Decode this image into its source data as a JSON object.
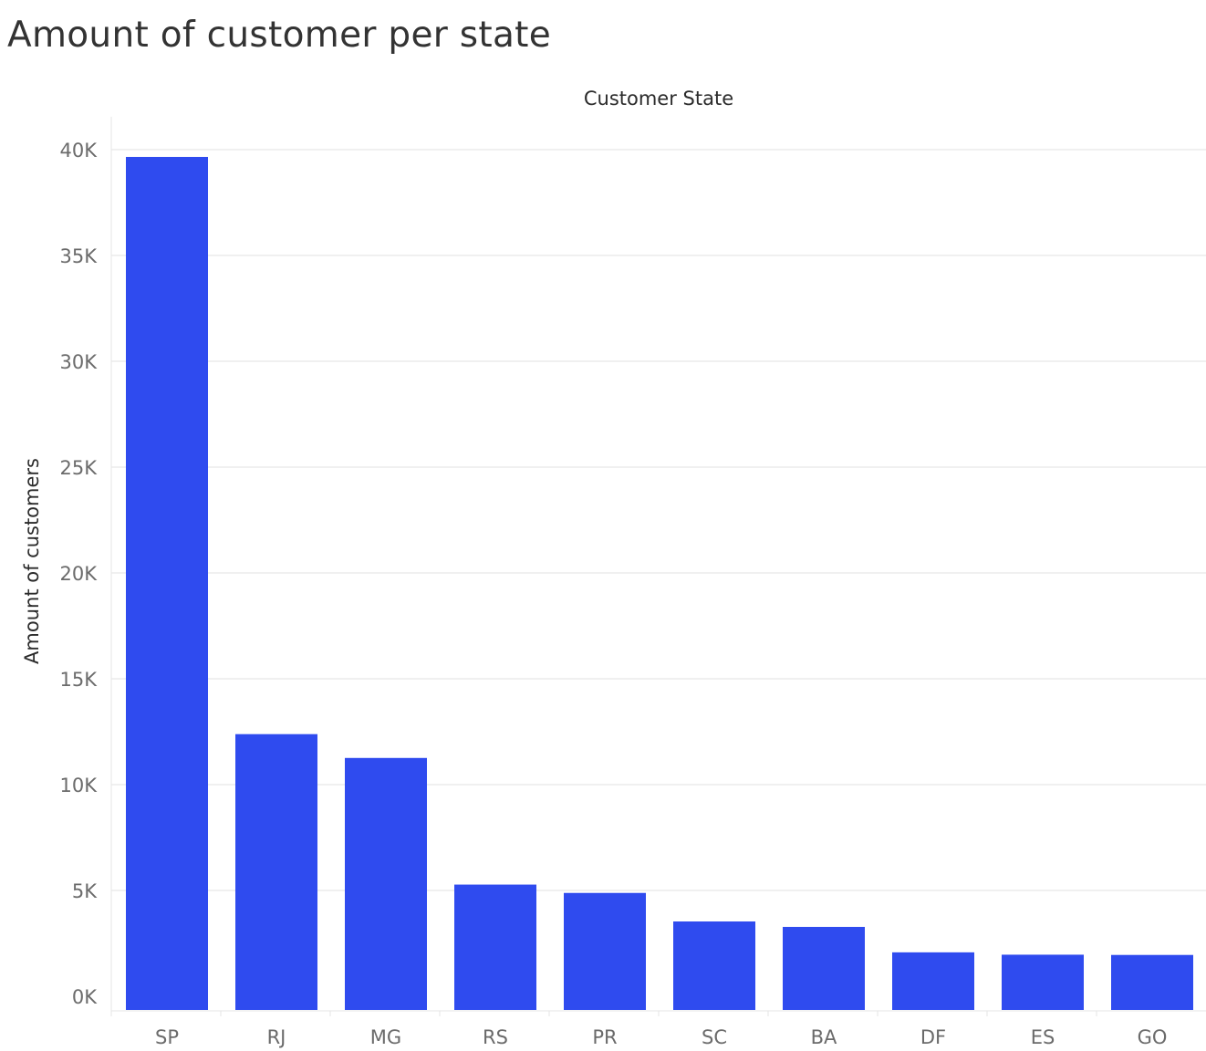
{
  "chart_data": {
    "type": "bar",
    "title": "Amount of customer per state",
    "xlabel": "Customer State",
    "ylabel": "Amount of customers",
    "categories": [
      "SP",
      "RJ",
      "MG",
      "RS",
      "PR",
      "SC",
      "BA",
      "DF",
      "ES",
      "GO"
    ],
    "values": [
      40302,
      12384,
      11259,
      5277,
      4882,
      3534,
      3277,
      2075,
      1964,
      1952
    ],
    "ylim": [
      0,
      42000
    ],
    "yticks": [
      0,
      5000,
      10000,
      15000,
      20000,
      25000,
      30000,
      35000,
      40000
    ],
    "ytick_labels": [
      "0K",
      "5K",
      "10K",
      "15K",
      "20K",
      "25K",
      "30K",
      "35K",
      "40K"
    ],
    "grid": true,
    "legend": "none",
    "bar_color": "#2f4bef"
  }
}
